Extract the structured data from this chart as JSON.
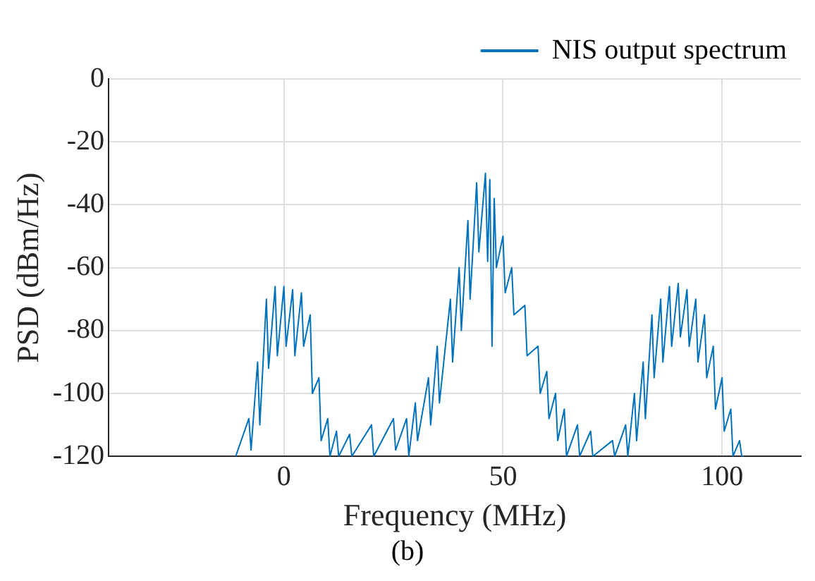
{
  "chart_data": {
    "type": "line",
    "xlabel": "Frequency (MHz)",
    "ylabel": "PSD (dBm/Hz)",
    "annotations": [
      "(b)"
    ],
    "xlim": [
      -40,
      118
    ],
    "ylim": [
      -120,
      0
    ],
    "xticks": [
      0,
      50,
      100
    ],
    "yticks": [
      0,
      -20,
      -40,
      -60,
      -80,
      -100,
      -120
    ],
    "grid": true,
    "legend": "top right",
    "marker": "none",
    "line_style": "solid",
    "series": [
      {
        "name": "NIS output spectrum",
        "color": "#0072bd",
        "x": [
          -11,
          -8,
          -7.5,
          -6,
          -5.5,
          -4,
          -3.5,
          -2,
          -1.5,
          0,
          0.5,
          2,
          2.5,
          4,
          4.5,
          6,
          6.5,
          8,
          8.5,
          10,
          10.5,
          12,
          12.5,
          15,
          15.5,
          20,
          20.5,
          25,
          25.5,
          28,
          28.5,
          30,
          30.5,
          33,
          33.5,
          35,
          35.5,
          38,
          38.5,
          40,
          40.5,
          42,
          42.5,
          44,
          44.5,
          46,
          46.5,
          47,
          47.5,
          48,
          48.5,
          50,
          50.5,
          52,
          52.5,
          55,
          55.5,
          58,
          58.5,
          60,
          60.5,
          62,
          62.5,
          64,
          64.5,
          67,
          67.5,
          70,
          70.5,
          75,
          75.5,
          78,
          78.5,
          80,
          80.5,
          82,
          82.5,
          84,
          84.5,
          86,
          86.5,
          88,
          88.5,
          90,
          90.5,
          92,
          92.5,
          94,
          94.5,
          96,
          96.5,
          98,
          98.5,
          100,
          100.5,
          102,
          102.5,
          104,
          104.5,
          105
        ],
        "values": [
          -120,
          -108,
          -118,
          -90,
          -110,
          -70,
          -92,
          -66,
          -88,
          -66,
          -85,
          -67,
          -88,
          -68,
          -85,
          -75,
          -100,
          -95,
          -115,
          -108,
          -120,
          -112,
          -120,
          -113,
          -120,
          -110,
          -120,
          -108,
          -118,
          -108,
          -120,
          -103,
          -115,
          -95,
          -110,
          -85,
          -103,
          -70,
          -90,
          -60,
          -80,
          -45,
          -70,
          -33,
          -55,
          -30,
          -58,
          -32,
          -85,
          -38,
          -60,
          -50,
          -68,
          -60,
          -75,
          -72,
          -88,
          -85,
          -100,
          -93,
          -108,
          -100,
          -115,
          -105,
          -120,
          -110,
          -120,
          -112,
          -120,
          -115,
          -120,
          -110,
          -120,
          -100,
          -115,
          -90,
          -108,
          -75,
          -95,
          -70,
          -90,
          -66,
          -85,
          -65,
          -82,
          -67,
          -85,
          -70,
          -90,
          -75,
          -95,
          -85,
          -105,
          -95,
          -112,
          -105,
          -120,
          -115,
          -120,
          -120
        ]
      }
    ]
  }
}
